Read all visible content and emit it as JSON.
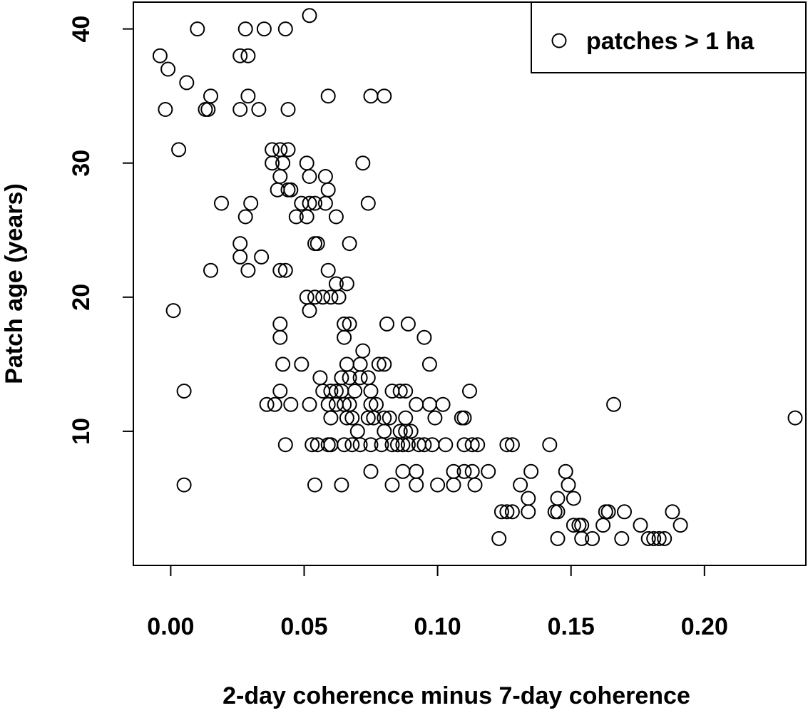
{
  "chart_data": {
    "type": "scatter",
    "title": "",
    "xlabel": "2-day coherence minus 7-day coherence",
    "ylabel": "Patch age (years)",
    "xlim": [
      -0.014,
      0.238
    ],
    "ylim": [
      0,
      42
    ],
    "x_ticks": [
      0.0,
      0.05,
      0.1,
      0.15,
      0.2
    ],
    "x_tick_labels": [
      "0.00",
      "0.05",
      "0.10",
      "0.15",
      "0.20"
    ],
    "y_ticks": [
      10,
      20,
      30,
      40
    ],
    "y_tick_labels": [
      "10",
      "20",
      "30",
      "40"
    ],
    "grid": false,
    "legend": {
      "position": "top-right",
      "entries": [
        {
          "label": "patches > 1 ha",
          "marker": "open-circle"
        }
      ]
    },
    "series": [
      {
        "name": "patches > 1 ha",
        "points": [
          [
            -0.004,
            38
          ],
          [
            -0.001,
            37
          ],
          [
            -0.002,
            34
          ],
          [
            0.006,
            36
          ],
          [
            0.01,
            40
          ],
          [
            0.013,
            34
          ],
          [
            0.014,
            34
          ],
          [
            0.015,
            35
          ],
          [
            0.003,
            31
          ],
          [
            0.001,
            19
          ],
          [
            0.005,
            13
          ],
          [
            0.005,
            6
          ],
          [
            0.019,
            27
          ],
          [
            0.015,
            22
          ],
          [
            0.026,
            38
          ],
          [
            0.029,
            38
          ],
          [
            0.028,
            40
          ],
          [
            0.035,
            40
          ],
          [
            0.043,
            40
          ],
          [
            0.052,
            41
          ],
          [
            0.026,
            34
          ],
          [
            0.029,
            35
          ],
          [
            0.033,
            34
          ],
          [
            0.044,
            34
          ],
          [
            0.059,
            35
          ],
          [
            0.075,
            35
          ],
          [
            0.08,
            35
          ],
          [
            0.072,
            30
          ],
          [
            0.028,
            26
          ],
          [
            0.03,
            27
          ],
          [
            0.026,
            24
          ],
          [
            0.026,
            23
          ],
          [
            0.029,
            22
          ],
          [
            0.034,
            23
          ],
          [
            0.041,
            22
          ],
          [
            0.043,
            22
          ],
          [
            0.038,
            31
          ],
          [
            0.041,
            31
          ],
          [
            0.044,
            31
          ],
          [
            0.038,
            30
          ],
          [
            0.042,
            30
          ],
          [
            0.04,
            28
          ],
          [
            0.041,
            29
          ],
          [
            0.044,
            28
          ],
          [
            0.045,
            28
          ],
          [
            0.047,
            26
          ],
          [
            0.049,
            27
          ],
          [
            0.051,
            26
          ],
          [
            0.052,
            27
          ],
          [
            0.054,
            27
          ],
          [
            0.051,
            30
          ],
          [
            0.052,
            29
          ],
          [
            0.058,
            29
          ],
          [
            0.059,
            28
          ],
          [
            0.058,
            27
          ],
          [
            0.055,
            24
          ],
          [
            0.062,
            26
          ],
          [
            0.067,
            24
          ],
          [
            0.074,
            27
          ],
          [
            0.054,
            24
          ],
          [
            0.059,
            22
          ],
          [
            0.062,
            21
          ],
          [
            0.066,
            21
          ],
          [
            0.051,
            20
          ],
          [
            0.054,
            20
          ],
          [
            0.057,
            20
          ],
          [
            0.06,
            20
          ],
          [
            0.063,
            20
          ],
          [
            0.052,
            19
          ],
          [
            0.041,
            18
          ],
          [
            0.041,
            17
          ],
          [
            0.065,
            18
          ],
          [
            0.067,
            18
          ],
          [
            0.065,
            17
          ],
          [
            0.081,
            18
          ],
          [
            0.089,
            18
          ],
          [
            0.095,
            17
          ],
          [
            0.042,
            15
          ],
          [
            0.049,
            15
          ],
          [
            0.071,
            15
          ],
          [
            0.072,
            16
          ],
          [
            0.066,
            15
          ],
          [
            0.078,
            15
          ],
          [
            0.08,
            15
          ],
          [
            0.097,
            15
          ],
          [
            0.056,
            14
          ],
          [
            0.064,
            14
          ],
          [
            0.067,
            14
          ],
          [
            0.071,
            14
          ],
          [
            0.074,
            14
          ],
          [
            0.041,
            13
          ],
          [
            0.057,
            13
          ],
          [
            0.06,
            13
          ],
          [
            0.062,
            13
          ],
          [
            0.064,
            13
          ],
          [
            0.069,
            13
          ],
          [
            0.075,
            13
          ],
          [
            0.083,
            13
          ],
          [
            0.086,
            13
          ],
          [
            0.088,
            13
          ],
          [
            0.112,
            13
          ],
          [
            0.036,
            12
          ],
          [
            0.039,
            12
          ],
          [
            0.045,
            12
          ],
          [
            0.052,
            12
          ],
          [
            0.059,
            12
          ],
          [
            0.062,
            12
          ],
          [
            0.065,
            12
          ],
          [
            0.067,
            12
          ],
          [
            0.075,
            12
          ],
          [
            0.077,
            12
          ],
          [
            0.092,
            12
          ],
          [
            0.097,
            12
          ],
          [
            0.102,
            12
          ],
          [
            0.166,
            12
          ],
          [
            0.06,
            11
          ],
          [
            0.066,
            11
          ],
          [
            0.068,
            11
          ],
          [
            0.074,
            11
          ],
          [
            0.076,
            11
          ],
          [
            0.08,
            11
          ],
          [
            0.082,
            11
          ],
          [
            0.088,
            11
          ],
          [
            0.099,
            11
          ],
          [
            0.109,
            11
          ],
          [
            0.11,
            11
          ],
          [
            0.234,
            11
          ],
          [
            0.07,
            10
          ],
          [
            0.08,
            10
          ],
          [
            0.086,
            10
          ],
          [
            0.088,
            10
          ],
          [
            0.09,
            10
          ],
          [
            0.043,
            9
          ],
          [
            0.053,
            9
          ],
          [
            0.055,
            9
          ],
          [
            0.059,
            9
          ],
          [
            0.06,
            9
          ],
          [
            0.065,
            9
          ],
          [
            0.068,
            9
          ],
          [
            0.071,
            9
          ],
          [
            0.075,
            9
          ],
          [
            0.079,
            9
          ],
          [
            0.083,
            9
          ],
          [
            0.085,
            9
          ],
          [
            0.087,
            9
          ],
          [
            0.089,
            9
          ],
          [
            0.093,
            9
          ],
          [
            0.095,
            9
          ],
          [
            0.098,
            9
          ],
          [
            0.103,
            9
          ],
          [
            0.11,
            9
          ],
          [
            0.113,
            9
          ],
          [
            0.115,
            9
          ],
          [
            0.126,
            9
          ],
          [
            0.128,
            9
          ],
          [
            0.142,
            9
          ],
          [
            0.075,
            7
          ],
          [
            0.087,
            7
          ],
          [
            0.092,
            7
          ],
          [
            0.106,
            7
          ],
          [
            0.11,
            7
          ],
          [
            0.113,
            7
          ],
          [
            0.119,
            7
          ],
          [
            0.135,
            7
          ],
          [
            0.148,
            7
          ],
          [
            0.054,
            6
          ],
          [
            0.064,
            6
          ],
          [
            0.083,
            6
          ],
          [
            0.092,
            6
          ],
          [
            0.1,
            6
          ],
          [
            0.106,
            6
          ],
          [
            0.114,
            6
          ],
          [
            0.131,
            6
          ],
          [
            0.149,
            6
          ],
          [
            0.134,
            5
          ],
          [
            0.145,
            5
          ],
          [
            0.151,
            5
          ],
          [
            0.124,
            4
          ],
          [
            0.126,
            4
          ],
          [
            0.128,
            4
          ],
          [
            0.134,
            4
          ],
          [
            0.144,
            4
          ],
          [
            0.145,
            4
          ],
          [
            0.163,
            4
          ],
          [
            0.164,
            4
          ],
          [
            0.17,
            4
          ],
          [
            0.188,
            4
          ],
          [
            0.151,
            3
          ],
          [
            0.153,
            3
          ],
          [
            0.154,
            3
          ],
          [
            0.162,
            3
          ],
          [
            0.176,
            3
          ],
          [
            0.191,
            3
          ],
          [
            0.123,
            2
          ],
          [
            0.145,
            2
          ],
          [
            0.154,
            2
          ],
          [
            0.158,
            2
          ],
          [
            0.169,
            2
          ],
          [
            0.179,
            2
          ],
          [
            0.181,
            2
          ],
          [
            0.183,
            2
          ],
          [
            0.185,
            2
          ]
        ]
      }
    ]
  }
}
